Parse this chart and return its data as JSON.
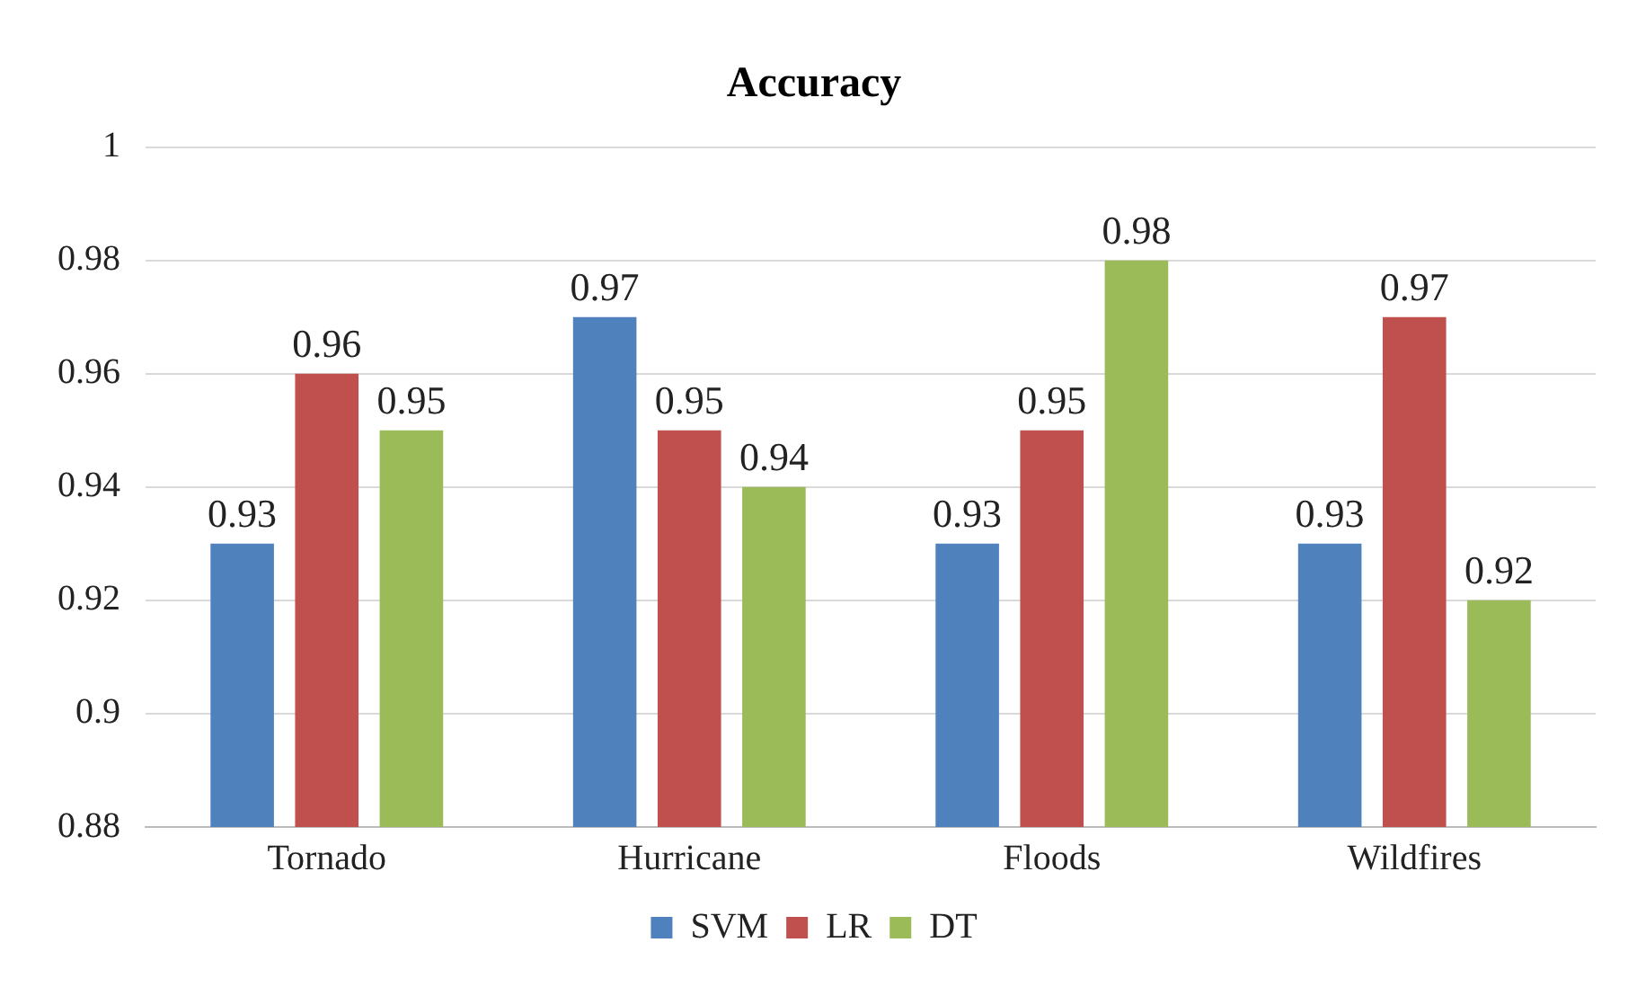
{
  "chart_data": {
    "type": "bar",
    "title": "Accuracy",
    "categories": [
      "Tornado",
      "Hurricane",
      "Floods",
      "Wildfires"
    ],
    "series": [
      {
        "name": "SVM",
        "color": "#4f81bd",
        "values": [
          0.93,
          0.97,
          0.93,
          0.93
        ]
      },
      {
        "name": "LR",
        "color": "#c0504d",
        "values": [
          0.96,
          0.95,
          0.95,
          0.97
        ]
      },
      {
        "name": "DT",
        "color": "#9bbb59",
        "values": [
          0.95,
          0.94,
          0.98,
          0.92
        ]
      }
    ],
    "ylim": [
      0.88,
      1
    ],
    "yticks": [
      0.88,
      0.9,
      0.92,
      0.94,
      0.96,
      0.98,
      1
    ],
    "grid": "y",
    "legend": "bottom",
    "data_labels": true
  }
}
